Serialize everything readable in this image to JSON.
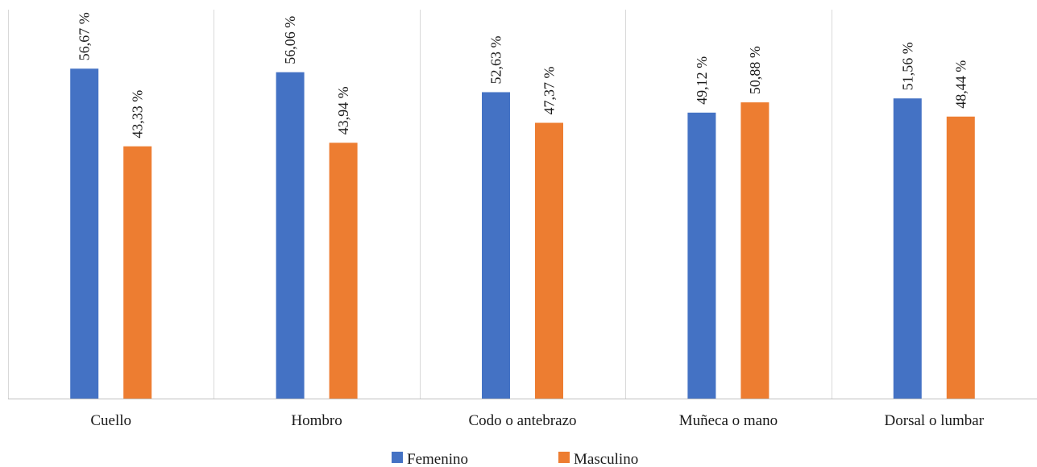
{
  "chart_data": {
    "type": "bar",
    "categories": [
      "Cuello",
      "Hombro",
      "Codo o antebrazo",
      "Muñeca o mano",
      "Dorsal o lumbar"
    ],
    "series": [
      {
        "name": "Femenino",
        "values": [
          56.67,
          56.06,
          52.63,
          49.12,
          51.56
        ],
        "labels": [
          "56,67 %",
          "56,06 %",
          "52,63 %",
          "49,12 %",
          "51,56 %"
        ],
        "color": "#4472C4"
      },
      {
        "name": "Masculino",
        "values": [
          43.33,
          43.94,
          47.37,
          50.88,
          48.44
        ],
        "labels": [
          "43,33 %",
          "43,94 %",
          "47,37 %",
          "50,88 %",
          "48,44 %"
        ],
        "color": "#ED7D31"
      }
    ],
    "title": "",
    "xlabel": "",
    "ylabel": "",
    "ylim": [
      0,
      70
    ],
    "grid": "vertical-category-separators",
    "legend": "bottom-center"
  }
}
